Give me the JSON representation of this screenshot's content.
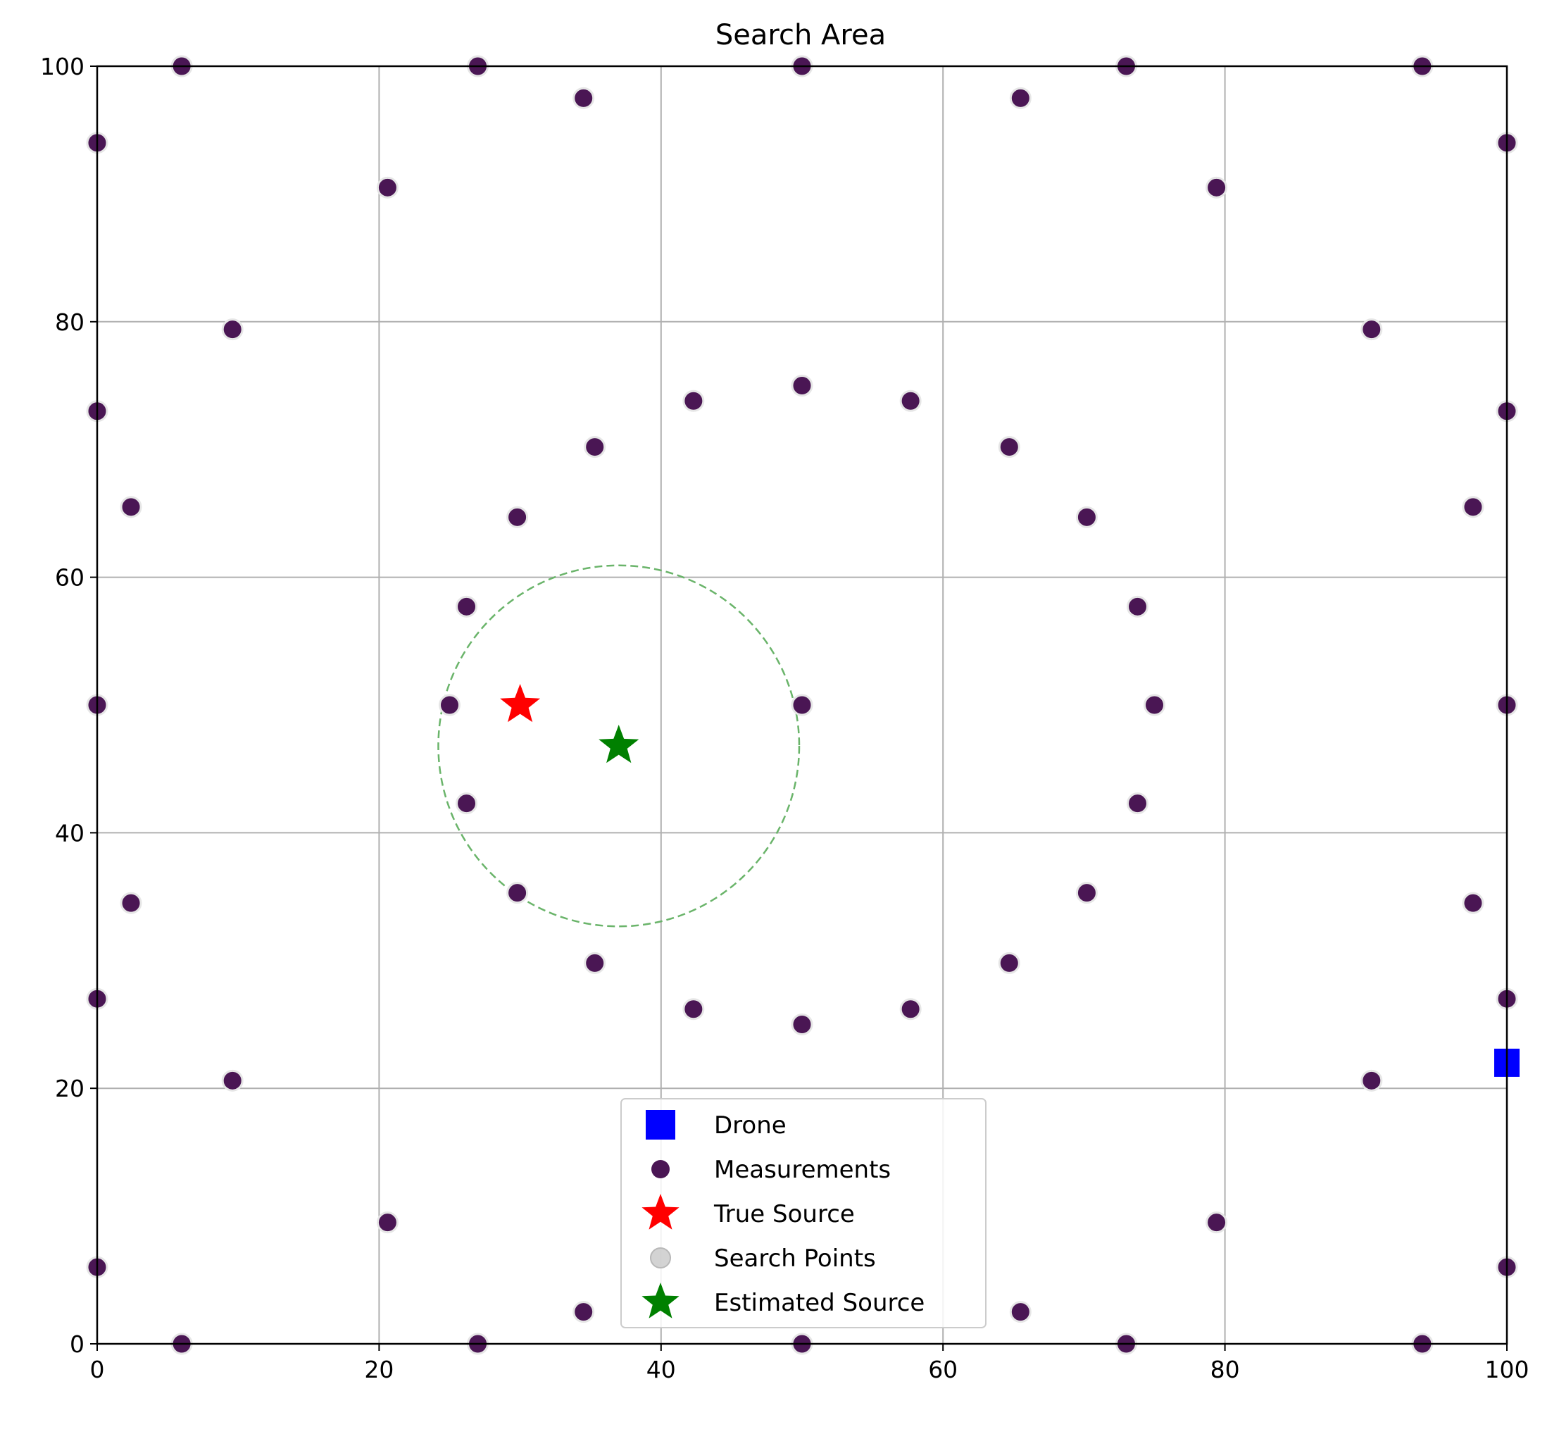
{
  "chart_data": {
    "type": "scatter",
    "title": "Search Area",
    "xlabel": "",
    "ylabel": "",
    "xlim": [
      0,
      100
    ],
    "ylim": [
      0,
      100
    ],
    "xticks": [
      0,
      20,
      40,
      60,
      80,
      100
    ],
    "yticks": [
      0,
      20,
      40,
      60,
      80,
      100
    ],
    "grid": true,
    "legend_position": "lower center",
    "legend": [
      "Drone",
      "Measurements",
      "True Source",
      "Search Points",
      "Estimated Source"
    ],
    "colors": {
      "drone": "#0000ff",
      "measurements": "#4a1654",
      "true_source": "#ff0000",
      "search_points": "#c8c8c8",
      "estimated_source": "#008000",
      "uncertainty_circle": "#6ab46a",
      "grid": "#b0b0b0"
    },
    "series": [
      {
        "name": "Drone",
        "marker": "square",
        "points": [
          [
            100,
            22
          ]
        ]
      },
      {
        "name": "Measurements",
        "marker": "circle",
        "points": [
          [
            6,
            100
          ],
          [
            27,
            100
          ],
          [
            50,
            100
          ],
          [
            73,
            100
          ],
          [
            94,
            100
          ],
          [
            34.5,
            97.5
          ],
          [
            65.5,
            97.5
          ],
          [
            0,
            94
          ],
          [
            100,
            94
          ],
          [
            20.6,
            90.5
          ],
          [
            79.4,
            90.5
          ],
          [
            9.6,
            79.4
          ],
          [
            90.4,
            79.4
          ],
          [
            50,
            75
          ],
          [
            42.3,
            73.8
          ],
          [
            57.7,
            73.8
          ],
          [
            0,
            73
          ],
          [
            100,
            73
          ],
          [
            35.3,
            70.2
          ],
          [
            64.7,
            70.2
          ],
          [
            2.4,
            65.5
          ],
          [
            97.6,
            65.5
          ],
          [
            29.8,
            64.7
          ],
          [
            70.2,
            64.7
          ],
          [
            26.2,
            57.7
          ],
          [
            73.8,
            57.7
          ],
          [
            0,
            50
          ],
          [
            25,
            50
          ],
          [
            50,
            50
          ],
          [
            75,
            50
          ],
          [
            100,
            50
          ],
          [
            26.2,
            42.3
          ],
          [
            73.8,
            42.3
          ],
          [
            29.8,
            35.3
          ],
          [
            70.2,
            35.3
          ],
          [
            2.4,
            34.5
          ],
          [
            97.6,
            34.5
          ],
          [
            35.3,
            29.8
          ],
          [
            64.7,
            29.8
          ],
          [
            0,
            27
          ],
          [
            100,
            27
          ],
          [
            42.3,
            26.2
          ],
          [
            57.7,
            26.2
          ],
          [
            50,
            25
          ],
          [
            9.6,
            20.6
          ],
          [
            90.4,
            20.6
          ],
          [
            20.6,
            9.5
          ],
          [
            79.4,
            9.5
          ],
          [
            0,
            6
          ],
          [
            100,
            6
          ],
          [
            34.5,
            2.5
          ],
          [
            65.5,
            2.5
          ],
          [
            6,
            0
          ],
          [
            27,
            0
          ],
          [
            50,
            0
          ],
          [
            73,
            0
          ],
          [
            94,
            0
          ]
        ]
      },
      {
        "name": "True Source",
        "marker": "star",
        "points": [
          [
            30,
            50
          ]
        ]
      },
      {
        "name": "Search Points",
        "marker": "circle",
        "points": []
      },
      {
        "name": "Estimated Source",
        "marker": "star",
        "points": [
          [
            37,
            46.8
          ]
        ]
      }
    ],
    "uncertainty_circle": {
      "center": [
        37,
        46.8
      ],
      "radius": 12.8,
      "style": "dashed"
    }
  }
}
